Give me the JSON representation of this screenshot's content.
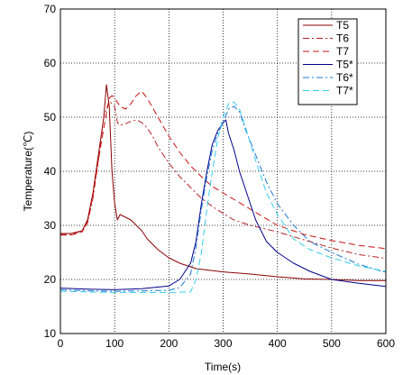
{
  "chart_data": {
    "type": "line",
    "xlabel": "Time(s)",
    "ylabel": "Temperature(℃)",
    "xlim": [
      0,
      600
    ],
    "ylim": [
      10,
      70
    ],
    "xticks": [
      0,
      100,
      200,
      300,
      400,
      500,
      600
    ],
    "yticks": [
      10,
      20,
      30,
      40,
      50,
      60,
      70
    ],
    "grid": "dotted",
    "legend_position": "top-right",
    "series": [
      {
        "name": "T5",
        "color": "#8b0000",
        "dash": "solid",
        "x": [
          0,
          20,
          40,
          50,
          60,
          70,
          80,
          85,
          90,
          95,
          100,
          105,
          110,
          120,
          130,
          140,
          150,
          160,
          180,
          200,
          220,
          250,
          300,
          350,
          400,
          450,
          500,
          550,
          600
        ],
        "y": [
          28.5,
          28.5,
          29,
          31,
          36,
          43,
          50,
          56,
          52,
          40,
          34,
          31,
          32,
          31.5,
          31,
          30,
          29,
          27.5,
          25.5,
          24,
          23,
          22,
          21.4,
          21,
          20.5,
          20.1,
          20,
          19.8,
          19.8
        ]
      },
      {
        "name": "T6",
        "color": "#b22222",
        "dash": "dashdot",
        "x": [
          0,
          20,
          40,
          50,
          60,
          70,
          80,
          90,
          100,
          105,
          110,
          120,
          130,
          140,
          150,
          160,
          170,
          180,
          200,
          220,
          240,
          260,
          280,
          300,
          320,
          350,
          400,
          450,
          500,
          550,
          600
        ],
        "y": [
          28.3,
          28.3,
          29,
          30.5,
          35,
          42,
          50,
          53,
          52,
          49,
          48.5,
          48.8,
          49.2,
          49.5,
          49,
          48,
          46.5,
          44.5,
          41.5,
          39,
          37,
          35,
          33.5,
          32.2,
          31,
          30,
          28.8,
          27.3,
          25.8,
          24.6,
          23.9
        ]
      },
      {
        "name": "T7",
        "color": "#cc1010",
        "dash": "dashed",
        "x": [
          0,
          20,
          40,
          50,
          60,
          70,
          80,
          90,
          95,
          100,
          110,
          120,
          130,
          140,
          150,
          160,
          180,
          200,
          220,
          240,
          260,
          280,
          300,
          350,
          400,
          450,
          500,
          550,
          600
        ],
        "y": [
          28.2,
          28.2,
          28.8,
          30.5,
          35.5,
          42,
          48,
          53.5,
          54,
          53.5,
          52,
          51.5,
          52.5,
          54,
          54.8,
          53.5,
          50,
          46.5,
          43.5,
          41,
          39,
          37.2,
          36,
          33,
          30,
          28.3,
          27.2,
          26.3,
          25.7
        ]
      },
      {
        "name": "T5*",
        "color": "#00008b",
        "dash": "solid",
        "x": [
          0,
          50,
          100,
          150,
          200,
          220,
          240,
          250,
          260,
          270,
          280,
          290,
          300,
          305,
          310,
          320,
          330,
          340,
          350,
          360,
          380,
          400,
          430,
          460,
          500,
          550,
          600
        ],
        "y": [
          18.4,
          18.2,
          18.1,
          18.3,
          18.8,
          20,
          23,
          27,
          34,
          40,
          45,
          47.5,
          49,
          49.5,
          47,
          44,
          40,
          37,
          34,
          31,
          27,
          25,
          23,
          21.5,
          20,
          19.3,
          18.7
        ]
      },
      {
        "name": "T6*",
        "color": "#1e78d2",
        "dash": "dashdot",
        "x": [
          0,
          50,
          100,
          150,
          200,
          220,
          240,
          250,
          260,
          270,
          280,
          290,
          300,
          310,
          320,
          330,
          340,
          360,
          380,
          400,
          430,
          460,
          500,
          550,
          600
        ],
        "y": [
          18.1,
          17.9,
          17.8,
          17.9,
          18,
          18.5,
          21,
          26,
          33,
          39,
          44,
          47,
          49,
          51.5,
          52,
          51,
          48,
          43,
          38,
          34,
          30,
          27,
          25,
          22.8,
          21.3
        ]
      },
      {
        "name": "T7*",
        "color": "#33ccee",
        "dash": "dashed",
        "x": [
          0,
          50,
          100,
          150,
          200,
          240,
          250,
          260,
          270,
          280,
          290,
          300,
          310,
          320,
          330,
          340,
          360,
          380,
          400,
          430,
          460,
          500,
          550,
          600
        ],
        "y": [
          17.8,
          17.7,
          17.6,
          17.6,
          17.6,
          17.7,
          20,
          25,
          33,
          40,
          46,
          50,
          52.5,
          52.8,
          51.5,
          48.5,
          42,
          36,
          32,
          27.5,
          25.5,
          24,
          22.5,
          21.5
        ]
      }
    ]
  }
}
